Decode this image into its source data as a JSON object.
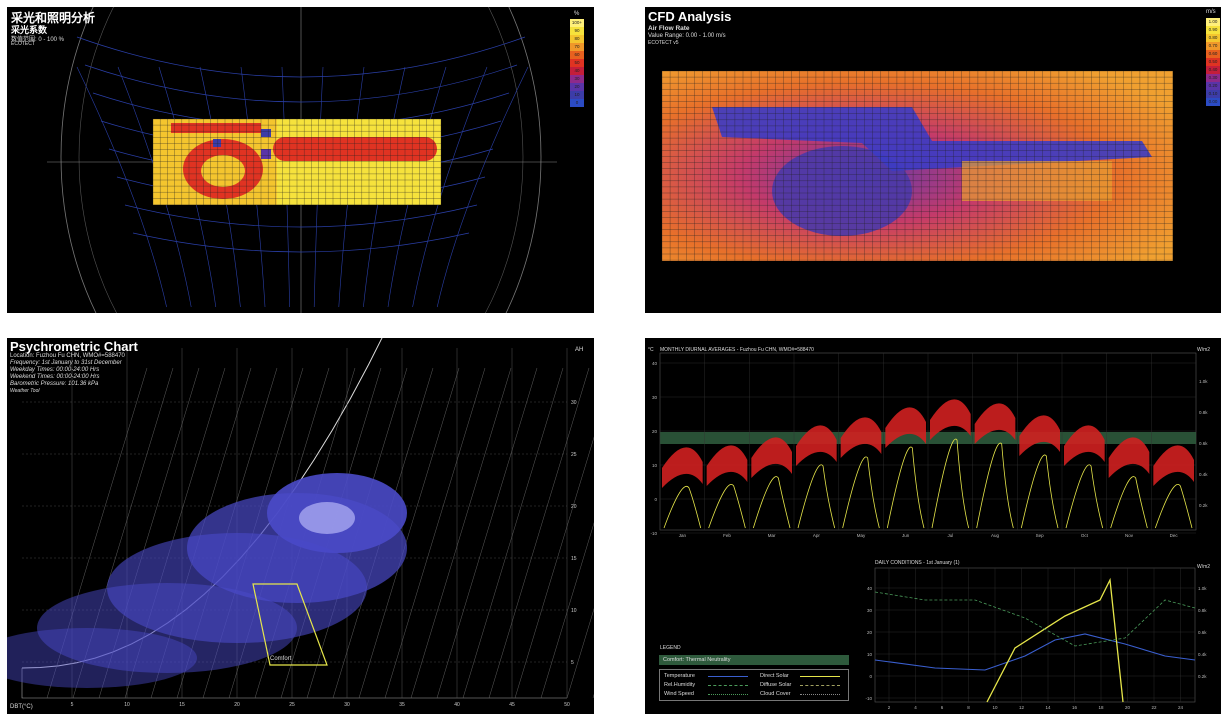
{
  "panel1": {
    "title": "采光和照明分析",
    "subtitle": "采光系数",
    "range": "数值范围: 0 - 100 %",
    "tag": "ECOTECT",
    "legend_unit": "%",
    "legend": [
      "100+",
      "90",
      "80",
      "70",
      "60",
      "50",
      "40",
      "30",
      "20",
      "10",
      "0"
    ],
    "legend_colors": [
      "#fff07a",
      "#f6e23c",
      "#f4c52e",
      "#f0982a",
      "#e8611f",
      "#e03322",
      "#c41e3a",
      "#8e2a8a",
      "#5a34a8",
      "#3c3ca8",
      "#2b4bc4"
    ]
  },
  "panel2": {
    "title": "CFD Analysis",
    "subtitle": "Air Flow Rate",
    "range": "Value Range: 0.00 - 1.00 m/s",
    "tag": "ECOTECT v5",
    "legend_unit": "m/s",
    "legend": [
      "1.00",
      "0.90",
      "0.80",
      "0.70",
      "0.60",
      "0.50",
      "0.40",
      "0.30",
      "0.20",
      "0.10",
      "0.00"
    ],
    "legend_colors": [
      "#fff07a",
      "#f6e23c",
      "#f4c52e",
      "#f0982a",
      "#e8611f",
      "#e03322",
      "#c41e3a",
      "#8e2a8a",
      "#5a34a8",
      "#3c3ca8",
      "#2b4bc4"
    ]
  },
  "panel3": {
    "title": "Psychrometric Chart",
    "lines": [
      "Location: Fuzhou Fu CHN, WMO#=588470",
      "Frequency: 1st January to 31st December",
      "Weekday Times: 00:00-24:00 Hrs",
      "Weekend Times: 00:00-24:00 Hrs",
      "Barometric Pressure: 101.36 kPa",
      "Weather Tool"
    ],
    "ah_label": "AH",
    "ah_ticks": [
      "30",
      "25",
      "20",
      "15",
      "10",
      "5"
    ],
    "dbt_label": "DBT(°C)",
    "dbt_ticks": [
      "5",
      "10",
      "15",
      "20",
      "25",
      "30",
      "35",
      "40",
      "45",
      "50"
    ],
    "comfort_label": "Comfort"
  },
  "panel4": {
    "top_title": "MONTHLY DIURNAL AVERAGES - Fuzhou Fu CHN, WMO#=588470",
    "top_left_unit": "°C",
    "top_right_unit": "W/m2",
    "y_ticks": [
      "40",
      "30",
      "20",
      "10",
      "0",
      "-10"
    ],
    "right_ticks": [
      "1.0k",
      "0.8k",
      "0.6k",
      "0.4k",
      "0.2k"
    ],
    "months": [
      "Jan",
      "Feb",
      "Mar",
      "Apr",
      "May",
      "Jun",
      "Jul",
      "Aug",
      "Sep",
      "Oct",
      "Nov",
      "Dec"
    ],
    "bottom_title": "DAILY CONDITIONS - 1st January (1)",
    "bottom_right_unit": "W/m2",
    "bottom_y_ticks": [
      "40",
      "30",
      "20",
      "10",
      "0",
      "-10"
    ],
    "bottom_right_ticks": [
      "1.0k",
      "0.8k",
      "0.6k",
      "0.4k",
      "0.2k"
    ],
    "bottom_x_ticks": [
      "2",
      "4",
      "6",
      "8",
      "10",
      "12",
      "14",
      "16",
      "18",
      "20",
      "22",
      "24"
    ],
    "legend_title": "LEGEND",
    "legend_band": "Comfort: Thermal Neutrality",
    "legend_items": [
      "Temperature",
      "Direct Solar",
      "Rel.Humidity",
      "Diffuse Solar",
      "Wind Speed",
      "Cloud Cover"
    ]
  }
}
